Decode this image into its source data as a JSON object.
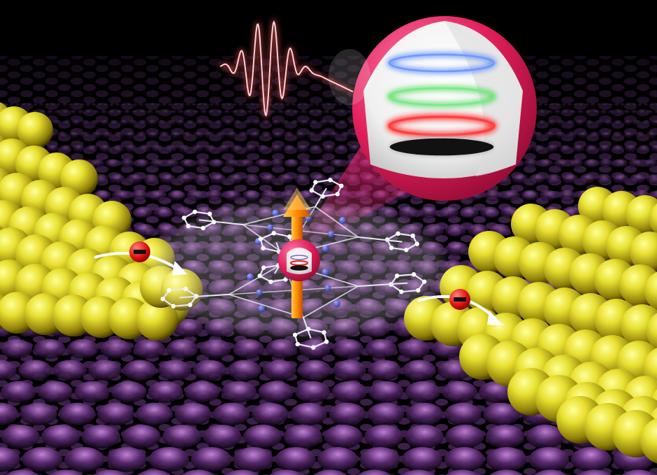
{
  "scene": {
    "subject": "single-molecule-magnet-junction",
    "colors": {
      "background": "#000000",
      "substrate_glow": "#b060d0",
      "gold": "#d8d020",
      "bubble": "#e0205a",
      "wave": "#ff5a5a",
      "spin_arrow": "#ff9a10",
      "nitrogen": "#4a55e0",
      "carbon": "#e8e8f0",
      "level_blue": "#3a70ff",
      "level_green": "#30d040",
      "level_red": "#ff2020",
      "level_black": "#111111"
    },
    "icons": {
      "electron_left": "electron-minus-icon",
      "electron_right": "electron-minus-icon",
      "spin": "spin-arrow-icon",
      "pulse": "radio-pulse-icon"
    },
    "electron_left_label": "−",
    "electron_right_label": "−",
    "energy_level_count": 4
  }
}
